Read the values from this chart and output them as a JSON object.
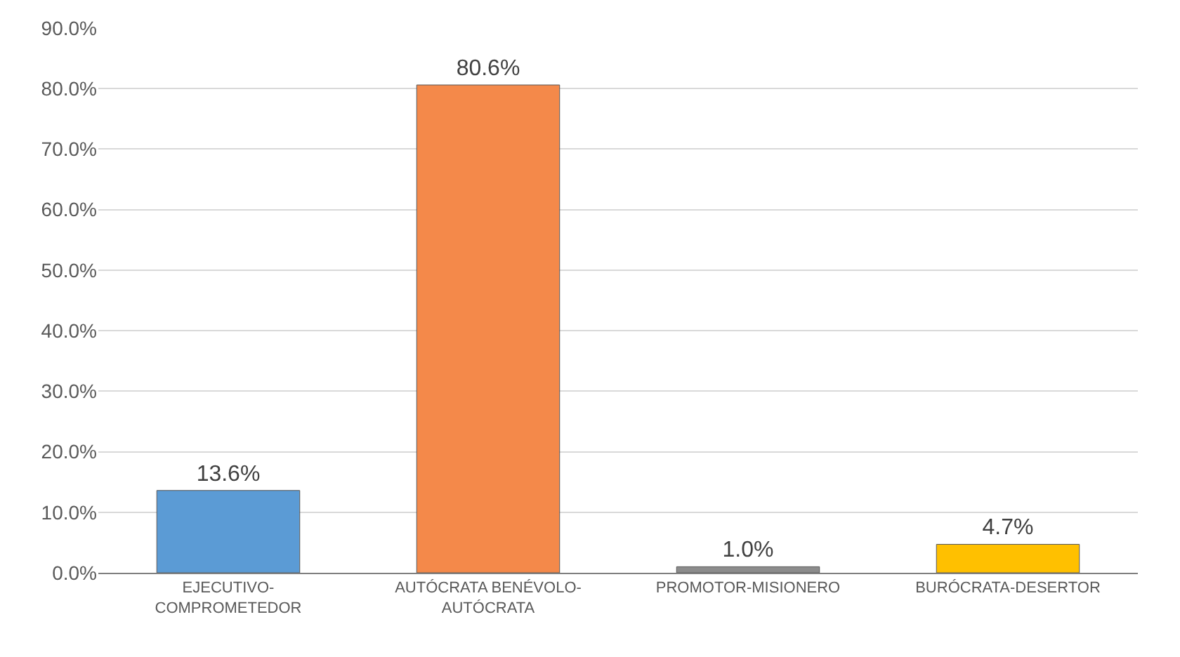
{
  "chart_data": {
    "type": "bar",
    "categories": [
      "EJECUTIVO-COMPROMETEDOR",
      "AUTÓCRATA BENÉVOLO-AUTÓCRATA",
      "PROMOTOR-MISIONERO",
      "BURÓCRATA-DESERTOR"
    ],
    "values": [
      13.6,
      80.6,
      1.0,
      4.7
    ],
    "colors": [
      "#5b9bd5",
      "#f4894a",
      "#8c8c8c",
      "#ffc000"
    ],
    "value_labels": [
      "13.6%",
      "80.6%",
      "1.0%",
      "4.7%"
    ],
    "ylim": [
      0,
      90
    ],
    "yticks": [
      {
        "value": 0,
        "label": "0.0%"
      },
      {
        "value": 10,
        "label": "10.0%"
      },
      {
        "value": 20,
        "label": "20.0%"
      },
      {
        "value": 30,
        "label": "30.0%"
      },
      {
        "value": 40,
        "label": "40.0%"
      },
      {
        "value": 50,
        "label": "50.0%"
      },
      {
        "value": 60,
        "label": "60.0%"
      },
      {
        "value": 70,
        "label": "70.0%"
      },
      {
        "value": 80,
        "label": "80.0%"
      },
      {
        "value": 90,
        "label": "90.0%"
      }
    ],
    "grid": "y"
  }
}
